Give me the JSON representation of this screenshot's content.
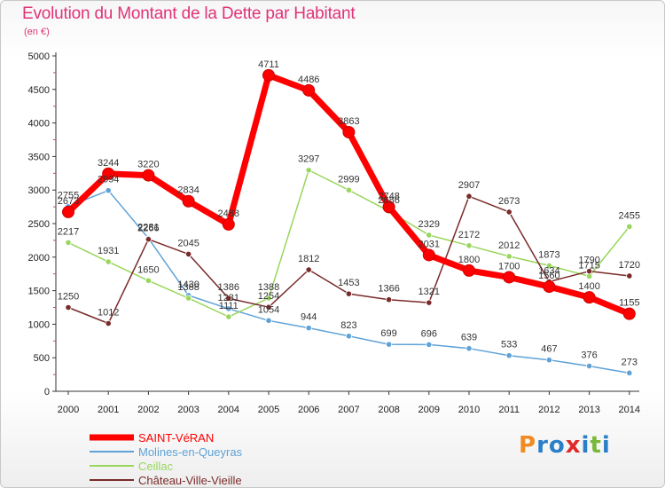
{
  "title": "Evolution du Montant de la Dette par Habitant",
  "unit": "(en €)",
  "logo": {
    "text": "Proxiti",
    "colors": [
      "#f08a24",
      "#2a7fc8",
      "#2a7fc8",
      "#e02a2a",
      "#2a7fc8",
      "#78b83a",
      "#2a7fc8"
    ]
  },
  "chart_data": {
    "type": "line",
    "title": "Evolution du Montant de la Dette par Habitant",
    "ylabel": "(en €)",
    "xlabel": "",
    "ylim": [
      0,
      5000
    ],
    "yticks": [
      0,
      500,
      1000,
      1500,
      2000,
      2500,
      3000,
      3500,
      4000,
      4500,
      5000
    ],
    "grid": false,
    "legend": "bottom-left",
    "categories": [
      "2000",
      "2001",
      "2002",
      "2003",
      "2004",
      "2005",
      "2006",
      "2007",
      "2008",
      "2009",
      "2010",
      "2011",
      "2012",
      "2013",
      "2014"
    ],
    "series": [
      {
        "name": "SAINT-VéRAN",
        "color": "#ff0000",
        "values": [
          2673,
          3244,
          3220,
          2834,
          2488,
          4711,
          4486,
          3863,
          2748,
          2031,
          1800,
          1700,
          1560,
          1400,
          1155
        ],
        "labels": [
          "2673",
          "3244",
          "3220",
          "2834",
          "2488",
          "4711",
          "4486",
          "3863",
          "2748",
          "2031",
          "1800",
          "1700",
          "1560",
          "1400",
          "1155"
        ]
      },
      {
        "name": "Molines-en-Queyras",
        "color": "#5fa2d7",
        "values": [
          2755,
          2994,
          2281,
          1430,
          1231,
          1054,
          944,
          823,
          699,
          696,
          639,
          533,
          467,
          376,
          273
        ],
        "labels": [
          "2755",
          "2994",
          "2281",
          "1430",
          "1231",
          "1054",
          "944",
          "823",
          "699",
          "696",
          "639",
          "533",
          "467",
          "376",
          "273"
        ]
      },
      {
        "name": "Ceillac",
        "color": "#99d65c",
        "values": [
          2217,
          1931,
          1650,
          1388,
          1111,
          1388,
          3297,
          2999,
          2686,
          2329,
          2172,
          2012,
          1873,
          1715,
          2455
        ],
        "labels": [
          "2217",
          "1931",
          "1650",
          "1388",
          "1111",
          "1388",
          "3297",
          "2999",
          "2686",
          "2329",
          "2172",
          "2012",
          "1873",
          "1715",
          "2455"
        ]
      },
      {
        "name": "Château-Ville-Vieille",
        "color": "#7a2a2a",
        "values": [
          1250,
          1012,
          2266,
          2045,
          1386,
          1254,
          1812,
          1453,
          1366,
          1321,
          2907,
          2673,
          1634,
          1790,
          1720
        ],
        "labels": [
          "1250",
          "1012",
          "2266",
          "2045",
          "1386",
          "1254",
          "1812",
          "1453",
          "1366",
          "1321",
          "2907",
          "2673",
          "1634",
          "1790",
          "1720"
        ]
      }
    ]
  }
}
